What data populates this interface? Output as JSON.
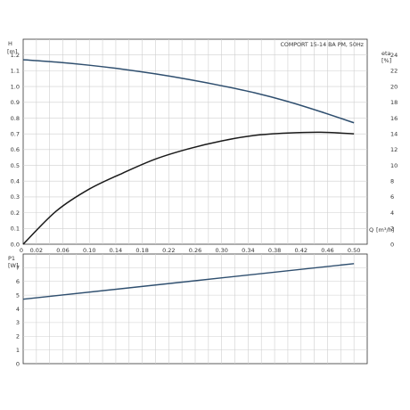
{
  "chart_data": [
    {
      "type": "line",
      "title": "COMPORT 15-14 BA PM, 50Hz",
      "xlabel": "Q",
      "xunit": "[m³/h]",
      "ylabel": "H",
      "yunit": "[m]",
      "y2label": "eta",
      "y2unit": "[%]",
      "xlim": [
        0,
        0.52
      ],
      "ylim": [
        0,
        1.3
      ],
      "y2lim": [
        0,
        26
      ],
      "grid": true,
      "x_ticks": [
        "0.02",
        "0.06",
        "0.10",
        "0.14",
        "0.18",
        "0.22",
        "0.26",
        "0.30",
        "0.34",
        "0.38",
        "0.42",
        "0.46",
        "0.50"
      ],
      "x_origin_label": "0",
      "y_ticks": [
        "0.0",
        "0.1",
        "0.2",
        "0.3",
        "0.4",
        "0.5",
        "0.6",
        "0.7",
        "0.8",
        "0.9",
        "1.0",
        "1.1",
        "1.2"
      ],
      "y2_ticks": [
        "0",
        "2",
        "4",
        "6",
        "8",
        "10",
        "12",
        "14",
        "16",
        "18",
        "20",
        "22",
        "24"
      ],
      "series": [
        {
          "axis": "left",
          "color": "#2f4f6f",
          "x": [
            0,
            0.05,
            0.1,
            0.15,
            0.2,
            0.25,
            0.3,
            0.35,
            0.4,
            0.45,
            0.5
          ],
          "y": [
            1.17,
            1.155,
            1.135,
            1.11,
            1.08,
            1.045,
            1.005,
            0.96,
            0.905,
            0.84,
            0.77
          ]
        },
        {
          "axis": "right",
          "color": "#1a1a1a",
          "x": [
            0,
            0.05,
            0.1,
            0.15,
            0.2,
            0.25,
            0.3,
            0.35,
            0.4,
            0.45,
            0.5
          ],
          "y": [
            0,
            4.2,
            7.0,
            9.0,
            10.8,
            12.1,
            13.1,
            13.8,
            14.1,
            14.2,
            14.0
          ]
        }
      ]
    },
    {
      "type": "line",
      "ylabel": "P1",
      "yunit": "[W]",
      "xlim": [
        0,
        0.52
      ],
      "ylim": [
        0,
        8
      ],
      "grid": true,
      "y_ticks": [
        "0",
        "1",
        "2",
        "3",
        "4",
        "5",
        "6",
        "7"
      ],
      "series": [
        {
          "axis": "left",
          "color": "#2f4f6f",
          "x": [
            0,
            0.5
          ],
          "y": [
            4.7,
            7.3
          ]
        }
      ]
    }
  ]
}
